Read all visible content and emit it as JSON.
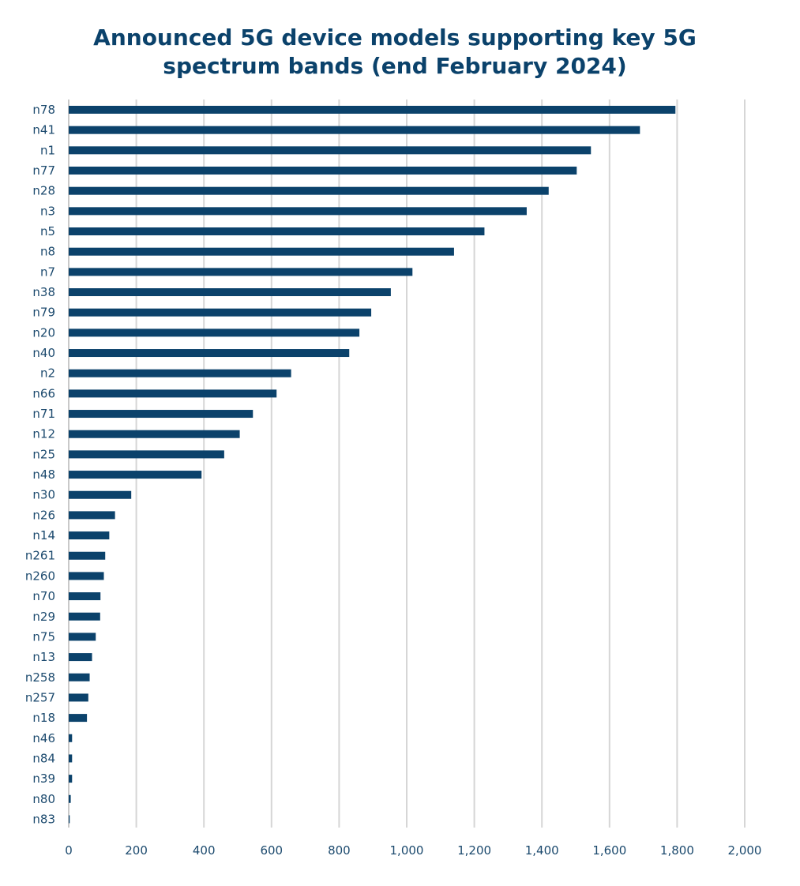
{
  "chart_data": {
    "type": "bar",
    "orientation": "horizontal",
    "title_lines": [
      "Announced 5G device models supporting key 5G",
      "spectrum bands (end February 2024)"
    ],
    "categories": [
      "n78",
      "n41",
      "n1",
      "n77",
      "n28",
      "n3",
      "n5",
      "n8",
      "n7",
      "n38",
      "n79",
      "n20",
      "n40",
      "n2",
      "n66",
      "n71",
      "n12",
      "n25",
      "n48",
      "n30",
      "n26",
      "n14",
      "n261",
      "n260",
      "n70",
      "n29",
      "n75",
      "n13",
      "n258",
      "n257",
      "n18",
      "n46",
      "n84",
      "n39",
      "n80",
      "n83"
    ],
    "values": [
      1795,
      1690,
      1545,
      1503,
      1420,
      1355,
      1230,
      1140,
      1017,
      953,
      895,
      860,
      830,
      658,
      615,
      545,
      506,
      460,
      393,
      185,
      137,
      120,
      108,
      104,
      94,
      93,
      80,
      69,
      62,
      58,
      54,
      10,
      10,
      10,
      6,
      3
    ],
    "xlim": [
      0,
      2000
    ],
    "xticks": [
      0,
      200,
      400,
      600,
      800,
      1000,
      1200,
      1400,
      1600,
      1800,
      2000
    ],
    "xtick_labels": [
      "0",
      "200",
      "400",
      "600",
      "800",
      "1,000",
      "1,200",
      "1,400",
      "1,600",
      "1,800",
      "2,000"
    ],
    "grid": true,
    "legend": "none",
    "bar_color": "#0b426b",
    "grid_color": "#d6d6d6"
  }
}
